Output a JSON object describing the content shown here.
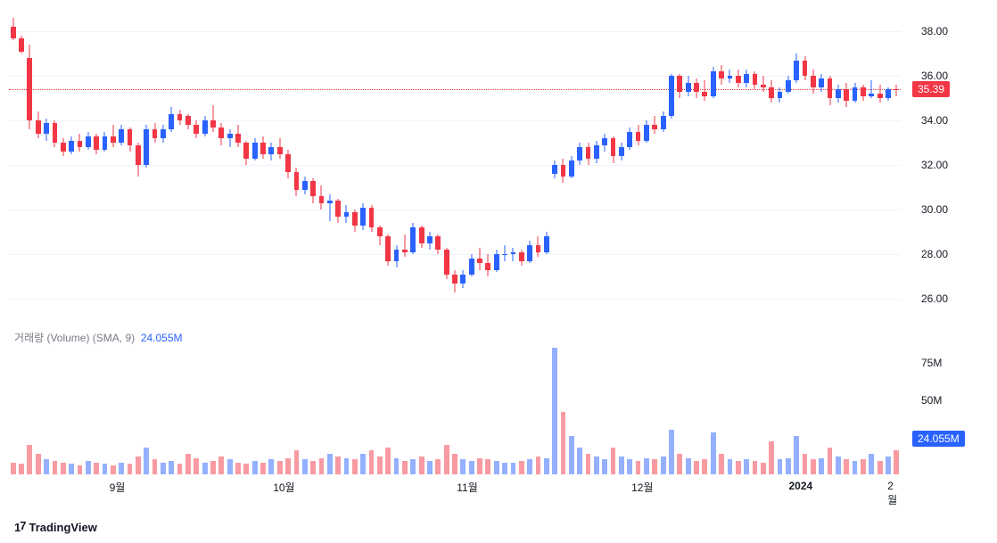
{
  "price": {
    "ylim": [
      25.0,
      39.0
    ],
    "yticks": [
      26.0,
      28.0,
      30.0,
      32.0,
      34.0,
      36.0,
      38.0
    ],
    "last": 35.39,
    "price_line_color": "#f23645",
    "up_color": "#2962ff",
    "down_color": "#f23645",
    "candles": [
      {
        "o": 38.2,
        "h": 38.6,
        "l": 37.6,
        "c": 37.7
      },
      {
        "o": 37.7,
        "h": 37.8,
        "l": 37.0,
        "c": 37.1
      },
      {
        "o": 36.8,
        "h": 37.4,
        "l": 33.6,
        "c": 34.0
      },
      {
        "o": 34.0,
        "h": 34.4,
        "l": 33.2,
        "c": 33.4
      },
      {
        "o": 33.4,
        "h": 34.1,
        "l": 33.1,
        "c": 33.9
      },
      {
        "o": 33.9,
        "h": 34.0,
        "l": 32.8,
        "c": 33.0
      },
      {
        "o": 33.0,
        "h": 33.2,
        "l": 32.4,
        "c": 32.6
      },
      {
        "o": 32.6,
        "h": 33.3,
        "l": 32.5,
        "c": 33.1
      },
      {
        "o": 33.1,
        "h": 33.4,
        "l": 32.6,
        "c": 32.8
      },
      {
        "o": 32.8,
        "h": 33.5,
        "l": 32.7,
        "c": 33.3
      },
      {
        "o": 33.3,
        "h": 33.4,
        "l": 32.5,
        "c": 32.7
      },
      {
        "o": 32.7,
        "h": 33.5,
        "l": 32.6,
        "c": 33.3
      },
      {
        "o": 33.3,
        "h": 33.8,
        "l": 32.8,
        "c": 33.0
      },
      {
        "o": 33.0,
        "h": 33.8,
        "l": 32.9,
        "c": 33.6
      },
      {
        "o": 33.6,
        "h": 33.7,
        "l": 32.6,
        "c": 32.9
      },
      {
        "o": 32.9,
        "h": 33.0,
        "l": 31.5,
        "c": 32.0
      },
      {
        "o": 32.0,
        "h": 33.8,
        "l": 31.9,
        "c": 33.6
      },
      {
        "o": 33.6,
        "h": 33.9,
        "l": 33.0,
        "c": 33.2
      },
      {
        "o": 33.2,
        "h": 33.8,
        "l": 33.0,
        "c": 33.6
      },
      {
        "o": 33.6,
        "h": 34.6,
        "l": 33.5,
        "c": 34.3
      },
      {
        "o": 34.3,
        "h": 34.5,
        "l": 33.8,
        "c": 34.0
      },
      {
        "o": 34.2,
        "h": 34.3,
        "l": 33.6,
        "c": 33.8
      },
      {
        "o": 33.8,
        "h": 34.0,
        "l": 33.2,
        "c": 33.4
      },
      {
        "o": 33.4,
        "h": 34.2,
        "l": 33.3,
        "c": 34.0
      },
      {
        "o": 34.0,
        "h": 34.7,
        "l": 33.5,
        "c": 33.7
      },
      {
        "o": 33.7,
        "h": 33.9,
        "l": 32.9,
        "c": 33.2
      },
      {
        "o": 33.2,
        "h": 33.6,
        "l": 32.8,
        "c": 33.4
      },
      {
        "o": 33.4,
        "h": 33.8,
        "l": 32.8,
        "c": 33.0
      },
      {
        "o": 33.0,
        "h": 33.1,
        "l": 32.0,
        "c": 32.3
      },
      {
        "o": 32.3,
        "h": 33.2,
        "l": 32.2,
        "c": 33.0
      },
      {
        "o": 33.0,
        "h": 33.3,
        "l": 32.3,
        "c": 32.5
      },
      {
        "o": 32.5,
        "h": 33.0,
        "l": 32.2,
        "c": 32.8
      },
      {
        "o": 32.8,
        "h": 33.2,
        "l": 32.3,
        "c": 32.5
      },
      {
        "o": 32.5,
        "h": 32.7,
        "l": 31.4,
        "c": 31.7
      },
      {
        "o": 31.7,
        "h": 31.9,
        "l": 30.6,
        "c": 30.9
      },
      {
        "o": 30.9,
        "h": 31.5,
        "l": 30.7,
        "c": 31.3
      },
      {
        "o": 31.3,
        "h": 31.4,
        "l": 30.3,
        "c": 30.6
      },
      {
        "o": 30.6,
        "h": 31.1,
        "l": 30.0,
        "c": 30.3
      },
      {
        "o": 30.3,
        "h": 30.7,
        "l": 29.5,
        "c": 30.4
      },
      {
        "o": 30.4,
        "h": 30.5,
        "l": 29.4,
        "c": 29.7
      },
      {
        "o": 29.7,
        "h": 30.2,
        "l": 29.4,
        "c": 29.9
      },
      {
        "o": 29.9,
        "h": 30.0,
        "l": 29.0,
        "c": 29.3
      },
      {
        "o": 29.3,
        "h": 30.3,
        "l": 29.1,
        "c": 30.1
      },
      {
        "o": 30.1,
        "h": 30.2,
        "l": 29.0,
        "c": 29.2
      },
      {
        "o": 29.2,
        "h": 29.3,
        "l": 28.4,
        "c": 28.8
      },
      {
        "o": 28.8,
        "h": 28.9,
        "l": 27.5,
        "c": 27.7
      },
      {
        "o": 27.7,
        "h": 28.4,
        "l": 27.4,
        "c": 28.2
      },
      {
        "o": 28.2,
        "h": 28.9,
        "l": 27.9,
        "c": 28.1
      },
      {
        "o": 28.1,
        "h": 29.4,
        "l": 28.0,
        "c": 29.2
      },
      {
        "o": 29.2,
        "h": 29.3,
        "l": 28.3,
        "c": 28.5
      },
      {
        "o": 28.5,
        "h": 29.0,
        "l": 28.2,
        "c": 28.8
      },
      {
        "o": 28.8,
        "h": 28.9,
        "l": 28.0,
        "c": 28.2
      },
      {
        "o": 28.2,
        "h": 28.3,
        "l": 26.9,
        "c": 27.1
      },
      {
        "o": 27.1,
        "h": 27.3,
        "l": 26.3,
        "c": 26.7
      },
      {
        "o": 26.7,
        "h": 27.3,
        "l": 26.5,
        "c": 27.1
      },
      {
        "o": 27.1,
        "h": 28.0,
        "l": 27.0,
        "c": 27.8
      },
      {
        "o": 27.8,
        "h": 28.3,
        "l": 27.3,
        "c": 27.6
      },
      {
        "o": 27.6,
        "h": 28.0,
        "l": 27.0,
        "c": 27.3
      },
      {
        "o": 27.3,
        "h": 28.2,
        "l": 27.2,
        "c": 28.0
      },
      {
        "o": 28.0,
        "h": 28.4,
        "l": 27.7,
        "c": 28.0
      },
      {
        "o": 28.0,
        "h": 28.3,
        "l": 27.7,
        "c": 28.1
      },
      {
        "o": 28.1,
        "h": 28.2,
        "l": 27.5,
        "c": 27.7
      },
      {
        "o": 27.7,
        "h": 28.6,
        "l": 27.6,
        "c": 28.4
      },
      {
        "o": 28.4,
        "h": 28.8,
        "l": 27.9,
        "c": 28.1
      },
      {
        "o": 28.1,
        "h": 29.0,
        "l": 28.0,
        "c": 28.8
      },
      {
        "o": 31.6,
        "h": 32.2,
        "l": 31.4,
        "c": 32.0
      },
      {
        "o": 32.0,
        "h": 32.3,
        "l": 31.2,
        "c": 31.5
      },
      {
        "o": 31.5,
        "h": 32.4,
        "l": 31.4,
        "c": 32.2
      },
      {
        "o": 32.2,
        "h": 33.0,
        "l": 32.0,
        "c": 32.8
      },
      {
        "o": 32.8,
        "h": 33.0,
        "l": 32.0,
        "c": 32.3
      },
      {
        "o": 32.3,
        "h": 33.1,
        "l": 32.1,
        "c": 32.9
      },
      {
        "o": 32.9,
        "h": 33.4,
        "l": 32.6,
        "c": 33.2
      },
      {
        "o": 33.2,
        "h": 33.3,
        "l": 32.1,
        "c": 32.4
      },
      {
        "o": 32.4,
        "h": 33.0,
        "l": 32.2,
        "c": 32.8
      },
      {
        "o": 32.8,
        "h": 33.7,
        "l": 32.7,
        "c": 33.5
      },
      {
        "o": 33.5,
        "h": 33.8,
        "l": 32.9,
        "c": 33.1
      },
      {
        "o": 33.1,
        "h": 34.0,
        "l": 33.0,
        "c": 33.8
      },
      {
        "o": 33.8,
        "h": 34.2,
        "l": 33.4,
        "c": 33.6
      },
      {
        "o": 33.6,
        "h": 34.4,
        "l": 33.5,
        "c": 34.2
      },
      {
        "o": 34.2,
        "h": 36.1,
        "l": 34.1,
        "c": 36.0
      },
      {
        "o": 36.0,
        "h": 36.1,
        "l": 35.0,
        "c": 35.3
      },
      {
        "o": 35.3,
        "h": 36.0,
        "l": 35.1,
        "c": 35.7
      },
      {
        "o": 35.7,
        "h": 35.9,
        "l": 35.0,
        "c": 35.3
      },
      {
        "o": 35.3,
        "h": 35.8,
        "l": 34.9,
        "c": 35.1
      },
      {
        "o": 35.1,
        "h": 36.4,
        "l": 35.0,
        "c": 36.2
      },
      {
        "o": 36.2,
        "h": 36.5,
        "l": 35.6,
        "c": 35.9
      },
      {
        "o": 35.9,
        "h": 36.3,
        "l": 35.7,
        "c": 36.0
      },
      {
        "o": 36.0,
        "h": 36.3,
        "l": 35.5,
        "c": 35.7
      },
      {
        "o": 35.7,
        "h": 36.3,
        "l": 35.5,
        "c": 36.1
      },
      {
        "o": 36.1,
        "h": 36.2,
        "l": 35.4,
        "c": 35.6
      },
      {
        "o": 35.6,
        "h": 36.0,
        "l": 35.3,
        "c": 35.5
      },
      {
        "o": 35.5,
        "h": 35.8,
        "l": 34.8,
        "c": 35.0
      },
      {
        "o": 35.0,
        "h": 35.5,
        "l": 34.8,
        "c": 35.3
      },
      {
        "o": 35.3,
        "h": 36.0,
        "l": 35.2,
        "c": 35.8
      },
      {
        "o": 35.8,
        "h": 37.0,
        "l": 35.7,
        "c": 36.7
      },
      {
        "o": 36.7,
        "h": 36.9,
        "l": 35.8,
        "c": 36.0
      },
      {
        "o": 36.0,
        "h": 36.3,
        "l": 35.2,
        "c": 35.5
      },
      {
        "o": 35.5,
        "h": 36.1,
        "l": 35.3,
        "c": 35.9
      },
      {
        "o": 35.9,
        "h": 36.0,
        "l": 34.7,
        "c": 35.0
      },
      {
        "o": 35.0,
        "h": 35.6,
        "l": 34.8,
        "c": 35.4
      },
      {
        "o": 35.4,
        "h": 35.7,
        "l": 34.6,
        "c": 34.9
      },
      {
        "o": 34.9,
        "h": 35.7,
        "l": 34.8,
        "c": 35.5
      },
      {
        "o": 35.5,
        "h": 35.6,
        "l": 34.9,
        "c": 35.1
      },
      {
        "o": 35.1,
        "h": 35.8,
        "l": 35.0,
        "c": 35.2
      },
      {
        "o": 35.2,
        "h": 35.6,
        "l": 34.8,
        "c": 35.0
      },
      {
        "o": 35.0,
        "h": 35.5,
        "l": 34.9,
        "c": 35.4
      },
      {
        "o": 35.4,
        "h": 35.6,
        "l": 35.1,
        "c": 35.39
      }
    ]
  },
  "volume": {
    "label": "거래량 (Volume) (SMA, 9)",
    "value_label": "24.055M",
    "ymax": 90,
    "yticks": [
      50,
      75
    ],
    "last": 24.055,
    "bars": [
      8,
      7,
      20,
      14,
      10,
      9,
      8,
      7,
      6,
      9,
      8,
      7,
      6,
      8,
      7,
      12,
      18,
      10,
      8,
      9,
      7,
      14,
      11,
      8,
      9,
      12,
      10,
      8,
      7,
      9,
      8,
      10,
      9,
      11,
      16,
      10,
      9,
      11,
      14,
      12,
      11,
      10,
      14,
      16,
      12,
      18,
      11,
      9,
      10,
      12,
      9,
      10,
      20,
      14,
      10,
      9,
      11,
      10,
      9,
      8,
      8,
      9,
      10,
      12,
      11,
      85,
      42,
      26,
      18,
      14,
      12,
      10,
      18,
      12,
      10,
      9,
      11,
      10,
      12,
      30,
      14,
      11,
      9,
      10,
      28,
      14,
      10,
      9,
      10,
      9,
      8,
      22,
      10,
      11,
      26,
      14,
      10,
      11,
      18,
      12,
      10,
      9,
      10,
      14,
      9,
      12,
      16
    ]
  },
  "xaxis": {
    "ticks": [
      {
        "pos": 13,
        "label": "9월"
      },
      {
        "pos": 33,
        "label": "10월"
      },
      {
        "pos": 55,
        "label": "11월"
      },
      {
        "pos": 76,
        "label": "12월"
      },
      {
        "pos": 95,
        "label": "2024",
        "bold": true
      },
      {
        "pos": 106,
        "label": "2월"
      }
    ],
    "range": 107
  },
  "watermark": "TradingView",
  "colors": {
    "grid": "#f0f3fa",
    "text": "#131722",
    "muted": "#787b86",
    "up": "#2962ff",
    "down": "#f23645",
    "price_badge_bg": "#f23645",
    "vol_badge_bg": "#2962ff",
    "background": "#ffffff"
  },
  "fonts": {
    "tick_size_pt": 12,
    "label_size_pt": 12,
    "watermark_size_pt": 13
  }
}
